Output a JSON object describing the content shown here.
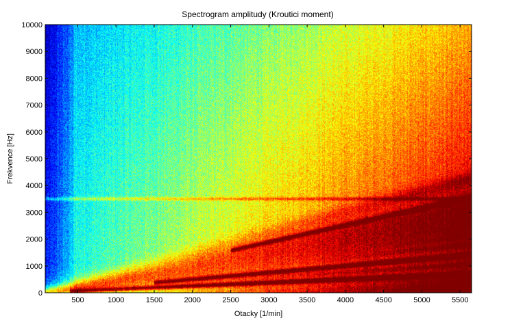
{
  "chart_data": {
    "type": "heatmap",
    "title": "Spectrogram amplitudy (Kroutici moment)",
    "xlabel": "Otacky [1/min]",
    "ylabel": "Frekvence [Hz]",
    "xlim": [
      75,
      5650
    ],
    "ylim": [
      0,
      10000
    ],
    "x_ticks": [
      500,
      1000,
      1500,
      2000,
      2500,
      3000,
      3500,
      4000,
      4500,
      5000,
      5500
    ],
    "y_ticks": [
      0,
      1000,
      2000,
      3000,
      4000,
      5000,
      6000,
      7000,
      8000,
      9000,
      10000
    ],
    "colormap": "jet",
    "grid": false,
    "features": {
      "ridges_hz_per_rpm": [
        0.125,
        0.19,
        0.25,
        0.32,
        0.38,
        0.44,
        0.5,
        0.56,
        0.63,
        0.75
      ],
      "strong_ridges": [
        {
          "slope_hz_per_rpm": 0.125,
          "x_from": 400,
          "x_to": 5650
        },
        {
          "slope_hz_per_rpm": 0.25,
          "x_from": 1500,
          "x_to": 5650
        },
        {
          "slope_hz_per_rpm": 0.63,
          "x_from": 2500,
          "x_to": 5650
        }
      ],
      "constant_band_hz": 3500,
      "low_rpm_dark_region_until": 450
    }
  }
}
